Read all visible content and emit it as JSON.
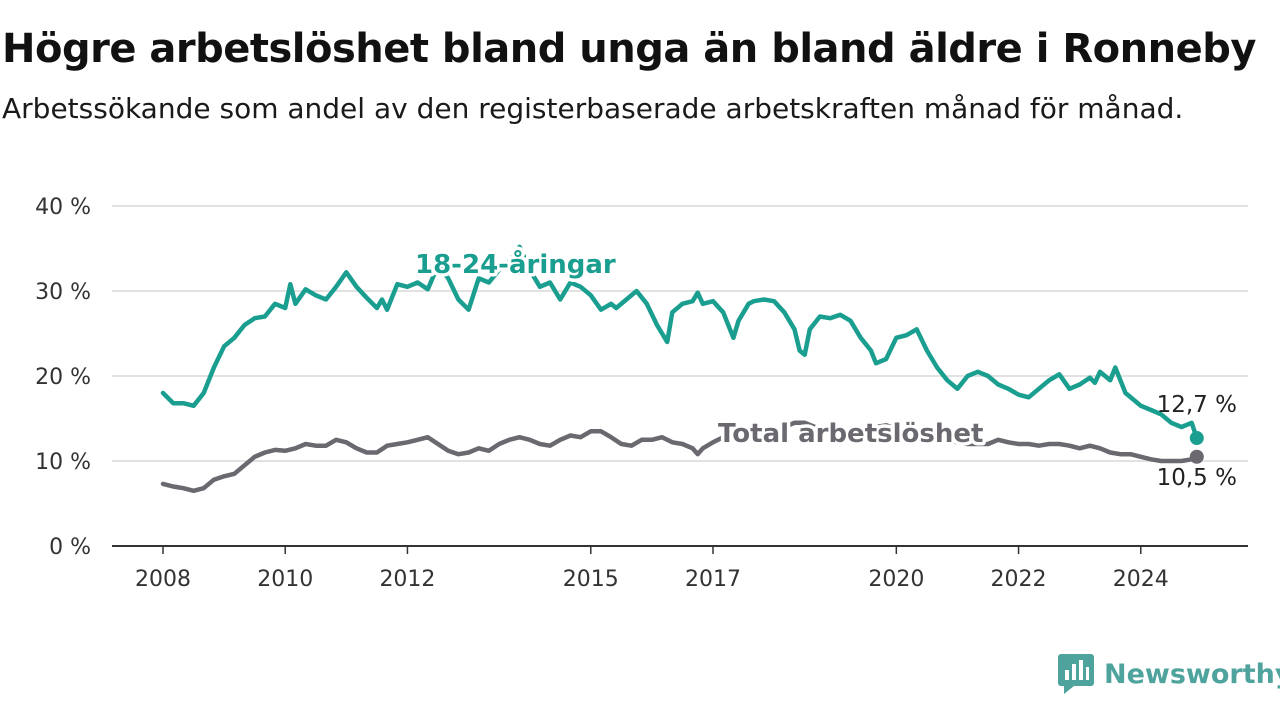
{
  "header": {
    "title": "Högre arbetslöshet bland unga än bland äldre i Ronneby",
    "subtitle": "Arbetssökande som andel av den registerbaserade arbetskraften månad för månad."
  },
  "brand": {
    "name": "Newsworthy",
    "icon": "newsworthy-logo-icon",
    "color": "#4fa39d"
  },
  "chart_data": {
    "type": "line",
    "title": "Högre arbetslöshet bland unga än bland äldre i Ronneby",
    "subtitle": "Arbetssökande som andel av den registerbaserade arbetskraften månad för månad.",
    "xlabel": "",
    "ylabel": "",
    "ylim": [
      0,
      40
    ],
    "xlim": [
      "2008-01",
      "2024-12"
    ],
    "y_ticks": [
      0,
      10,
      20,
      30,
      40
    ],
    "y_tick_labels": [
      "0 %",
      "10 %",
      "20 %",
      "30 %",
      "40 %"
    ],
    "x_ticks": [
      2008,
      2010,
      2012,
      2015,
      2017,
      2020,
      2022,
      2024
    ],
    "x_tick_labels": [
      "2008",
      "2010",
      "2012",
      "2015",
      "2017",
      "2020",
      "2022",
      "2024"
    ],
    "grid": "horizontal",
    "legend": "inline labels",
    "series": [
      {
        "name": "18-24-åringar",
        "color": "#1a9e8f",
        "end_label": "12,7 %",
        "end_value": 12.7,
        "points": [
          [
            "2008-01",
            18.0
          ],
          [
            "2008-03",
            16.8
          ],
          [
            "2008-05",
            16.8
          ],
          [
            "2008-07",
            16.5
          ],
          [
            "2008-09",
            18.0
          ],
          [
            "2008-11",
            21.0
          ],
          [
            "2009-01",
            23.5
          ],
          [
            "2009-03",
            24.5
          ],
          [
            "2009-05",
            26.0
          ],
          [
            "2009-07",
            26.8
          ],
          [
            "2009-09",
            27.0
          ],
          [
            "2009-11",
            28.5
          ],
          [
            "2010-01",
            28.0
          ],
          [
            "2010-02",
            30.8
          ],
          [
            "2010-03",
            28.5
          ],
          [
            "2010-05",
            30.2
          ],
          [
            "2010-07",
            29.5
          ],
          [
            "2010-09",
            29.0
          ],
          [
            "2010-11",
            30.5
          ],
          [
            "2011-01",
            32.2
          ],
          [
            "2011-03",
            30.5
          ],
          [
            "2011-05",
            29.2
          ],
          [
            "2011-07",
            28.0
          ],
          [
            "2011-08",
            29.0
          ],
          [
            "2011-09",
            27.8
          ],
          [
            "2011-11",
            30.8
          ],
          [
            "2012-01",
            30.5
          ],
          [
            "2012-03",
            31.0
          ],
          [
            "2012-05",
            30.2
          ],
          [
            "2012-07",
            33.0
          ],
          [
            "2012-09",
            31.5
          ],
          [
            "2012-11",
            29.0
          ],
          [
            "2013-01",
            27.8
          ],
          [
            "2013-03",
            31.5
          ],
          [
            "2013-05",
            31.0
          ],
          [
            "2013-07",
            32.5
          ],
          [
            "2013-09",
            33.5
          ],
          [
            "2013-11",
            35.2
          ],
          [
            "2014-01",
            32.5
          ],
          [
            "2014-03",
            30.5
          ],
          [
            "2014-05",
            31.0
          ],
          [
            "2014-07",
            29.0
          ],
          [
            "2014-09",
            31.0
          ],
          [
            "2014-11",
            30.5
          ],
          [
            "2015-01",
            29.5
          ],
          [
            "2015-03",
            27.8
          ],
          [
            "2015-05",
            28.5
          ],
          [
            "2015-06",
            28.0
          ],
          [
            "2015-08",
            29.0
          ],
          [
            "2015-10",
            30.0
          ],
          [
            "2015-12",
            28.5
          ],
          [
            "2016-02",
            26.0
          ],
          [
            "2016-04",
            24.0
          ],
          [
            "2016-05",
            27.5
          ],
          [
            "2016-07",
            28.5
          ],
          [
            "2016-09",
            28.8
          ],
          [
            "2016-10",
            29.8
          ],
          [
            "2016-11",
            28.5
          ],
          [
            "2017-01",
            28.8
          ],
          [
            "2017-03",
            27.5
          ],
          [
            "2017-05",
            24.5
          ],
          [
            "2017-06",
            26.5
          ],
          [
            "2017-08",
            28.5
          ],
          [
            "2017-09",
            28.8
          ],
          [
            "2017-11",
            29.0
          ],
          [
            "2018-01",
            28.8
          ],
          [
            "2018-03",
            27.5
          ],
          [
            "2018-05",
            25.5
          ],
          [
            "2018-06",
            23.0
          ],
          [
            "2018-07",
            22.5
          ],
          [
            "2018-08",
            25.5
          ],
          [
            "2018-10",
            27.0
          ],
          [
            "2018-12",
            26.8
          ],
          [
            "2019-02",
            27.2
          ],
          [
            "2019-04",
            26.5
          ],
          [
            "2019-06",
            24.5
          ],
          [
            "2019-08",
            23.0
          ],
          [
            "2019-09",
            21.5
          ],
          [
            "2019-11",
            22.0
          ],
          [
            "2020-01",
            24.5
          ],
          [
            "2020-03",
            24.8
          ],
          [
            "2020-05",
            25.5
          ],
          [
            "2020-07",
            23.0
          ],
          [
            "2020-09",
            21.0
          ],
          [
            "2020-11",
            19.5
          ],
          [
            "2021-01",
            18.5
          ],
          [
            "2021-03",
            20.0
          ],
          [
            "2021-05",
            20.5
          ],
          [
            "2021-07",
            20.0
          ],
          [
            "2021-09",
            19.0
          ],
          [
            "2021-11",
            18.5
          ],
          [
            "2022-01",
            17.8
          ],
          [
            "2022-03",
            17.5
          ],
          [
            "2022-05",
            18.5
          ],
          [
            "2022-07",
            19.5
          ],
          [
            "2022-09",
            20.2
          ],
          [
            "2022-11",
            18.5
          ],
          [
            "2023-01",
            19.0
          ],
          [
            "2023-03",
            19.8
          ],
          [
            "2023-04",
            19.2
          ],
          [
            "2023-05",
            20.5
          ],
          [
            "2023-06",
            20.0
          ],
          [
            "2023-07",
            19.5
          ],
          [
            "2023-08",
            21.0
          ],
          [
            "2023-09",
            19.5
          ],
          [
            "2023-10",
            18.0
          ],
          [
            "2023-12",
            17.0
          ],
          [
            "2024-01",
            16.5
          ],
          [
            "2024-03",
            16.0
          ],
          [
            "2024-05",
            15.5
          ],
          [
            "2024-07",
            14.5
          ],
          [
            "2024-09",
            14.0
          ],
          [
            "2024-11",
            14.5
          ],
          [
            "2024-12",
            12.7
          ]
        ]
      },
      {
        "name": "Total arbetslöshet",
        "color": "#6b6870",
        "end_label": "10,5 %",
        "end_value": 10.5,
        "points": [
          [
            "2008-01",
            7.3
          ],
          [
            "2008-03",
            7.0
          ],
          [
            "2008-05",
            6.8
          ],
          [
            "2008-07",
            6.5
          ],
          [
            "2008-09",
            6.8
          ],
          [
            "2008-11",
            7.8
          ],
          [
            "2009-01",
            8.2
          ],
          [
            "2009-03",
            8.5
          ],
          [
            "2009-05",
            9.5
          ],
          [
            "2009-07",
            10.5
          ],
          [
            "2009-09",
            11.0
          ],
          [
            "2009-11",
            11.3
          ],
          [
            "2010-01",
            11.2
          ],
          [
            "2010-03",
            11.5
          ],
          [
            "2010-05",
            12.0
          ],
          [
            "2010-07",
            11.8
          ],
          [
            "2010-09",
            11.8
          ],
          [
            "2010-11",
            12.5
          ],
          [
            "2011-01",
            12.2
          ],
          [
            "2011-03",
            11.5
          ],
          [
            "2011-05",
            11.0
          ],
          [
            "2011-07",
            11.0
          ],
          [
            "2011-09",
            11.8
          ],
          [
            "2011-11",
            12.0
          ],
          [
            "2012-01",
            12.2
          ],
          [
            "2012-03",
            12.5
          ],
          [
            "2012-05",
            12.8
          ],
          [
            "2012-07",
            12.0
          ],
          [
            "2012-09",
            11.2
          ],
          [
            "2012-11",
            10.8
          ],
          [
            "2013-01",
            11.0
          ],
          [
            "2013-03",
            11.5
          ],
          [
            "2013-05",
            11.2
          ],
          [
            "2013-07",
            12.0
          ],
          [
            "2013-09",
            12.5
          ],
          [
            "2013-11",
            12.8
          ],
          [
            "2014-01",
            12.5
          ],
          [
            "2014-03",
            12.0
          ],
          [
            "2014-05",
            11.8
          ],
          [
            "2014-07",
            12.5
          ],
          [
            "2014-09",
            13.0
          ],
          [
            "2014-11",
            12.8
          ],
          [
            "2015-01",
            13.5
          ],
          [
            "2015-03",
            13.5
          ],
          [
            "2015-05",
            12.8
          ],
          [
            "2015-07",
            12.0
          ],
          [
            "2015-09",
            11.8
          ],
          [
            "2015-11",
            12.5
          ],
          [
            "2016-01",
            12.5
          ],
          [
            "2016-03",
            12.8
          ],
          [
            "2016-05",
            12.2
          ],
          [
            "2016-07",
            12.0
          ],
          [
            "2016-09",
            11.5
          ],
          [
            "2016-10",
            10.8
          ],
          [
            "2016-11",
            11.5
          ],
          [
            "2017-01",
            12.2
          ],
          [
            "2017-03",
            12.8
          ],
          [
            "2017-05",
            13.0
          ],
          [
            "2017-07",
            13.2
          ],
          [
            "2017-09",
            13.0
          ],
          [
            "2017-11",
            12.5
          ],
          [
            "2018-01",
            13.5
          ],
          [
            "2018-03",
            14.0
          ],
          [
            "2018-05",
            14.5
          ],
          [
            "2018-07",
            14.5
          ],
          [
            "2018-09",
            14.0
          ],
          [
            "2018-11",
            13.5
          ],
          [
            "2019-01",
            13.0
          ],
          [
            "2019-03",
            12.5
          ],
          [
            "2019-05",
            12.8
          ],
          [
            "2019-07",
            13.5
          ],
          [
            "2019-09",
            14.0
          ],
          [
            "2019-11",
            14.2
          ],
          [
            "2020-01",
            13.8
          ],
          [
            "2020-03",
            13.5
          ],
          [
            "2020-05",
            13.0
          ],
          [
            "2020-07",
            12.8
          ],
          [
            "2020-09",
            12.5
          ],
          [
            "2020-11",
            12.5
          ],
          [
            "2021-01",
            12.2
          ],
          [
            "2021-03",
            12.0
          ],
          [
            "2021-05",
            12.0
          ],
          [
            "2021-07",
            12.0
          ],
          [
            "2021-09",
            12.5
          ],
          [
            "2021-11",
            12.2
          ],
          [
            "2022-01",
            12.0
          ],
          [
            "2022-03",
            12.0
          ],
          [
            "2022-05",
            11.8
          ],
          [
            "2022-07",
            12.0
          ],
          [
            "2022-09",
            12.0
          ],
          [
            "2022-11",
            11.8
          ],
          [
            "2023-01",
            11.5
          ],
          [
            "2023-03",
            11.8
          ],
          [
            "2023-05",
            11.5
          ],
          [
            "2023-07",
            11.0
          ],
          [
            "2023-09",
            10.8
          ],
          [
            "2023-11",
            10.8
          ],
          [
            "2024-01",
            10.5
          ],
          [
            "2024-03",
            10.2
          ],
          [
            "2024-05",
            10.0
          ],
          [
            "2024-07",
            10.0
          ],
          [
            "2024-09",
            10.0
          ],
          [
            "2024-11",
            10.2
          ],
          [
            "2024-12",
            10.5
          ]
        ]
      }
    ],
    "annotations": [
      {
        "text": "18-24-åringar",
        "series": 0
      },
      {
        "text": "Total arbetslöshet",
        "series": 1
      },
      {
        "text": "12,7 %",
        "series": 0
      },
      {
        "text": "10,5 %",
        "series": 1
      }
    ]
  }
}
